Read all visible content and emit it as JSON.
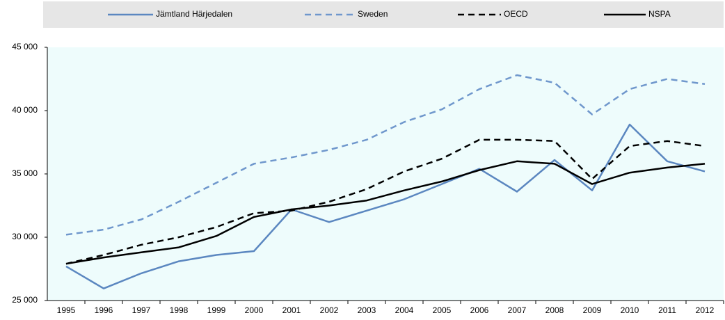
{
  "chart_data": {
    "type": "line",
    "categories": [
      "1995",
      "1996",
      "1997",
      "1998",
      "1999",
      "2000",
      "2001",
      "2002",
      "2003",
      "2004",
      "2005",
      "2006",
      "2007",
      "2008",
      "2009",
      "2010",
      "2011",
      "2012"
    ],
    "ylim": [
      25000,
      45000
    ],
    "yticks": [
      {
        "value": 25000,
        "label": "25 000"
      },
      {
        "value": 30000,
        "label": "30 000"
      },
      {
        "value": 35000,
        "label": "35 000"
      },
      {
        "value": 40000,
        "label": "40 000"
      },
      {
        "value": 45000,
        "label": "45 000"
      }
    ],
    "grid": false,
    "legend": "top",
    "series": [
      {
        "name": "Jämtland Härjedalen",
        "color": "#5b87c0",
        "dash": false,
        "values": [
          27700,
          25950,
          27150,
          28100,
          28600,
          28900,
          32200,
          31200,
          32100,
          33000,
          34200,
          35400,
          33600,
          36100,
          33700,
          38900,
          36000,
          35200
        ]
      },
      {
        "name": "Sweden",
        "color": "#6f97cc",
        "dash": true,
        "values": [
          30200,
          30600,
          31400,
          32800,
          34300,
          35800,
          36300,
          36900,
          37700,
          39100,
          40100,
          41700,
          42800,
          42200,
          39700,
          41700,
          42500,
          42100
        ]
      },
      {
        "name": "OECD",
        "color": "#000000",
        "dash": true,
        "values": [
          27900,
          28600,
          29400,
          30000,
          30800,
          31900,
          32100,
          32800,
          33800,
          35200,
          36200,
          37700,
          37700,
          37600,
          34600,
          37200,
          37600,
          37200
        ]
      },
      {
        "name": "NSPA",
        "color": "#000000",
        "dash": false,
        "values": [
          27900,
          28400,
          28800,
          29200,
          30100,
          31600,
          32200,
          32500,
          32900,
          33700,
          34400,
          35300,
          36000,
          35800,
          34200,
          35100,
          35500,
          35800
        ]
      }
    ]
  }
}
